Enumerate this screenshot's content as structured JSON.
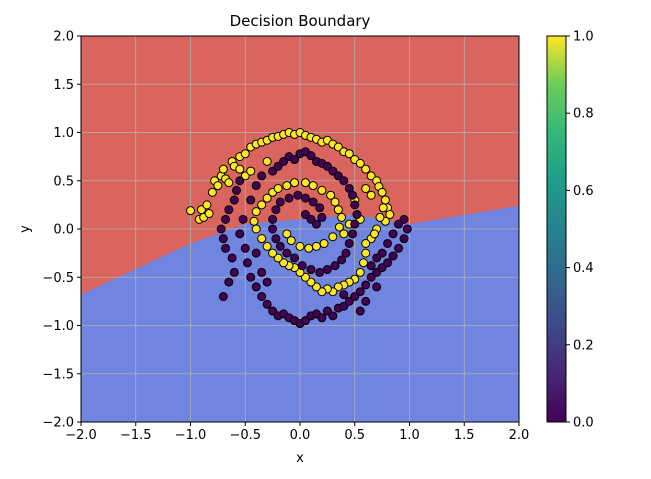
{
  "chart_data": {
    "type": "scatter",
    "title": "Decision Boundary",
    "xlabel": "x",
    "ylabel": "y",
    "xlim": [
      -2.0,
      2.0
    ],
    "ylim": [
      -2.0,
      2.0
    ],
    "xticks": [
      "−2.0",
      "−1.5",
      "−1.0",
      "−0.5",
      "0.0",
      "0.5",
      "1.0",
      "1.5",
      "2.0"
    ],
    "yticks": [
      "−2.0",
      "−1.5",
      "−1.0",
      "−0.5",
      "0.0",
      "0.5",
      "1.0",
      "1.5",
      "2.0"
    ],
    "xtick_values": [
      -2,
      -1.5,
      -1,
      -0.5,
      0,
      0.5,
      1,
      1.5,
      2
    ],
    "ytick_values": [
      -2,
      -1.5,
      -1,
      -0.5,
      0,
      0.5,
      1,
      1.5,
      2
    ],
    "grid": true,
    "colorbar": {
      "ticks": [
        "0.0",
        "0.2",
        "0.4",
        "0.6",
        "0.8",
        "1.0"
      ],
      "tick_values": [
        0,
        0.2,
        0.4,
        0.6,
        0.8,
        1.0
      ],
      "colormap": "viridis"
    },
    "background_regions": {
      "class_0_color": "#7085e0",
      "class_1_color": "#d9655e",
      "boundary_line": [
        [
          -2.0,
          -0.68
        ],
        [
          -1.0,
          -0.15
        ],
        [
          -0.5,
          0.05
        ],
        [
          0.5,
          0.15
        ],
        [
          1.0,
          0.05
        ],
        [
          2.0,
          0.24
        ]
      ],
      "above_line_class": 1
    },
    "series": [
      {
        "class": 1,
        "color": "#fde725",
        "points": [
          [
            -1.0,
            0.19
          ],
          [
            -0.92,
            0.1
          ],
          [
            -0.9,
            0.2
          ],
          [
            -0.88,
            0.12
          ],
          [
            -0.85,
            0.25
          ],
          [
            -0.83,
            0.16
          ],
          [
            -0.8,
            0.38
          ],
          [
            -0.78,
            0.5
          ],
          [
            -0.75,
            0.45
          ],
          [
            -0.72,
            0.55
          ],
          [
            -0.7,
            0.62
          ],
          [
            -0.68,
            0.52
          ],
          [
            -0.65,
            0.48
          ],
          [
            -0.62,
            0.7
          ],
          [
            -0.6,
            0.65
          ],
          [
            -0.55,
            0.75
          ],
          [
            -0.5,
            0.78
          ],
          [
            -0.45,
            0.85
          ],
          [
            -0.4,
            0.88
          ],
          [
            -0.35,
            0.9
          ],
          [
            -0.3,
            0.92
          ],
          [
            -0.25,
            0.95
          ],
          [
            -0.2,
            0.96
          ],
          [
            -0.15,
            0.98
          ],
          [
            -0.1,
            1.0
          ],
          [
            -0.05,
            0.98
          ],
          [
            0.0,
            1.0
          ],
          [
            0.05,
            0.97
          ],
          [
            0.1,
            0.95
          ],
          [
            0.15,
            0.93
          ],
          [
            0.2,
            0.9
          ],
          [
            0.25,
            0.92
          ],
          [
            0.3,
            0.88
          ],
          [
            0.35,
            0.85
          ],
          [
            0.4,
            0.8
          ],
          [
            0.45,
            0.78
          ],
          [
            0.5,
            0.72
          ],
          [
            0.55,
            0.68
          ],
          [
            0.6,
            0.62
          ],
          [
            0.65,
            0.55
          ],
          [
            0.7,
            0.5
          ],
          [
            0.72,
            0.44
          ],
          [
            0.75,
            0.38
          ],
          [
            0.78,
            0.3
          ],
          [
            0.8,
            0.22
          ],
          [
            0.82,
            0.15
          ],
          [
            0.78,
            0.08
          ],
          [
            0.7,
            0.0
          ],
          [
            0.65,
            -0.1
          ],
          [
            0.6,
            -0.25
          ],
          [
            0.58,
            -0.35
          ],
          [
            0.55,
            -0.45
          ],
          [
            0.5,
            -0.52
          ],
          [
            0.45,
            -0.55
          ],
          [
            0.4,
            -0.58
          ],
          [
            0.35,
            -0.6
          ],
          [
            0.3,
            -0.65
          ],
          [
            0.25,
            -0.62
          ],
          [
            0.2,
            -0.65
          ],
          [
            0.15,
            -0.6
          ],
          [
            0.1,
            -0.55
          ],
          [
            0.05,
            -0.5
          ],
          [
            0.0,
            -0.45
          ],
          [
            -0.05,
            -0.4
          ],
          [
            -0.1,
            -0.38
          ],
          [
            -0.15,
            -0.35
          ],
          [
            -0.2,
            -0.3
          ],
          [
            -0.25,
            -0.25
          ],
          [
            -0.3,
            -0.18
          ],
          [
            -0.35,
            -0.1
          ],
          [
            -0.4,
            0.0
          ],
          [
            -0.42,
            0.08
          ],
          [
            -0.4,
            0.18
          ],
          [
            -0.35,
            0.25
          ],
          [
            -0.3,
            0.32
          ],
          [
            -0.25,
            0.38
          ],
          [
            -0.2,
            0.42
          ],
          [
            -0.12,
            0.45
          ],
          [
            -0.05,
            0.48
          ],
          [
            0.05,
            0.48
          ],
          [
            0.12,
            0.45
          ],
          [
            0.2,
            0.4
          ],
          [
            0.28,
            0.35
          ],
          [
            0.32,
            0.28
          ],
          [
            0.35,
            0.2
          ],
          [
            0.38,
            0.12
          ],
          [
            0.36,
            0.02
          ],
          [
            0.3,
            -0.08
          ],
          [
            0.22,
            -0.15
          ],
          [
            0.15,
            -0.18
          ],
          [
            0.08,
            -0.2
          ],
          [
            0.0,
            -0.18
          ],
          [
            -0.08,
            -0.12
          ],
          [
            -0.12,
            -0.05
          ],
          [
            0.4,
            -0.05
          ],
          [
            0.45,
            0.05
          ],
          [
            0.5,
            0.3
          ],
          [
            0.55,
            0.1
          ],
          [
            0.6,
            -0.15
          ],
          [
            0.68,
            -0.05
          ],
          [
            0.73,
            0.12
          ],
          [
            0.76,
            0.22
          ],
          [
            -0.55,
            0.62
          ],
          [
            -0.5,
            0.55
          ],
          [
            -0.45,
            0.6
          ],
          [
            -0.3,
            0.7
          ],
          [
            0.6,
            0.42
          ],
          [
            0.65,
            0.35
          ]
        ]
      },
      {
        "class": 0,
        "color": "#440154",
        "points": [
          [
            -0.7,
            -0.7
          ],
          [
            -0.65,
            -0.55
          ],
          [
            -0.6,
            -0.45
          ],
          [
            -0.62,
            -0.3
          ],
          [
            -0.68,
            -0.2
          ],
          [
            -0.7,
            -0.1
          ],
          [
            -0.72,
            0.0
          ],
          [
            -0.68,
            0.1
          ],
          [
            -0.65,
            0.2
          ],
          [
            -0.6,
            0.3
          ],
          [
            -0.58,
            0.4
          ],
          [
            -0.55,
            0.5
          ],
          [
            -0.52,
            0.1
          ],
          [
            -0.55,
            -0.05
          ],
          [
            -0.5,
            -0.2
          ],
          [
            -0.48,
            -0.35
          ],
          [
            -0.45,
            -0.5
          ],
          [
            -0.4,
            -0.6
          ],
          [
            -0.35,
            -0.7
          ],
          [
            -0.3,
            -0.78
          ],
          [
            -0.25,
            -0.85
          ],
          [
            -0.2,
            -0.9
          ],
          [
            -0.15,
            -0.88
          ],
          [
            -0.1,
            -0.92
          ],
          [
            -0.05,
            -0.95
          ],
          [
            0.0,
            -0.98
          ],
          [
            0.05,
            -0.95
          ],
          [
            0.1,
            -0.9
          ],
          [
            0.15,
            -0.88
          ],
          [
            0.2,
            -0.92
          ],
          [
            0.25,
            -0.85
          ],
          [
            0.3,
            -0.9
          ],
          [
            0.35,
            -0.82
          ],
          [
            0.4,
            -0.8
          ],
          [
            0.45,
            -0.75
          ],
          [
            0.5,
            -0.7
          ],
          [
            0.55,
            -0.65
          ],
          [
            0.6,
            -0.58
          ],
          [
            0.65,
            -0.5
          ],
          [
            0.7,
            -0.45
          ],
          [
            0.75,
            -0.4
          ],
          [
            0.8,
            -0.35
          ],
          [
            0.85,
            -0.28
          ],
          [
            0.9,
            -0.2
          ],
          [
            0.95,
            -0.1
          ],
          [
            0.98,
            0.0
          ],
          [
            0.95,
            0.1
          ],
          [
            0.9,
            0.05
          ],
          [
            0.85,
            -0.05
          ],
          [
            0.8,
            -0.15
          ],
          [
            0.75,
            -0.25
          ],
          [
            0.7,
            -0.3
          ],
          [
            0.65,
            -0.38
          ],
          [
            -0.25,
            0.6
          ],
          [
            -0.2,
            0.65
          ],
          [
            -0.15,
            0.7
          ],
          [
            -0.1,
            0.75
          ],
          [
            -0.05,
            0.72
          ],
          [
            0.0,
            0.78
          ],
          [
            0.05,
            0.8
          ],
          [
            0.1,
            0.76
          ],
          [
            0.15,
            0.7
          ],
          [
            0.2,
            0.68
          ],
          [
            0.25,
            0.65
          ],
          [
            0.3,
            0.6
          ],
          [
            0.35,
            0.55
          ],
          [
            0.4,
            0.5
          ],
          [
            0.45,
            0.42
          ],
          [
            0.48,
            0.35
          ],
          [
            0.5,
            0.25
          ],
          [
            0.52,
            0.15
          ],
          [
            0.5,
            0.05
          ],
          [
            0.48,
            -0.05
          ],
          [
            0.45,
            -0.15
          ],
          [
            0.42,
            -0.25
          ],
          [
            0.38,
            -0.32
          ],
          [
            0.32,
            -0.38
          ],
          [
            0.25,
            -0.42
          ],
          [
            0.18,
            -0.45
          ],
          [
            0.1,
            -0.42
          ],
          [
            0.02,
            -0.38
          ],
          [
            -0.05,
            -0.3
          ],
          [
            -0.12,
            -0.25
          ],
          [
            -0.18,
            -0.18
          ],
          [
            -0.22,
            -0.1
          ],
          [
            -0.25,
            0.0
          ],
          [
            -0.25,
            0.1
          ],
          [
            -0.22,
            0.2
          ],
          [
            -0.18,
            0.28
          ],
          [
            -0.1,
            0.32
          ],
          [
            -0.02,
            0.35
          ],
          [
            0.05,
            0.32
          ],
          [
            0.12,
            0.28
          ],
          [
            0.18,
            0.22
          ],
          [
            0.2,
            0.12
          ],
          [
            0.15,
            0.05
          ],
          [
            0.1,
            0.1
          ],
          [
            0.05,
            0.15
          ],
          [
            -0.4,
            -0.25
          ],
          [
            -0.35,
            -0.45
          ],
          [
            -0.3,
            -0.55
          ],
          [
            -0.45,
            0.3
          ],
          [
            -0.4,
            0.45
          ],
          [
            -0.35,
            0.55
          ],
          [
            0.6,
            -0.75
          ],
          [
            0.55,
            -0.85
          ],
          [
            0.4,
            -0.68
          ],
          [
            0.7,
            -0.6
          ]
        ]
      }
    ]
  }
}
